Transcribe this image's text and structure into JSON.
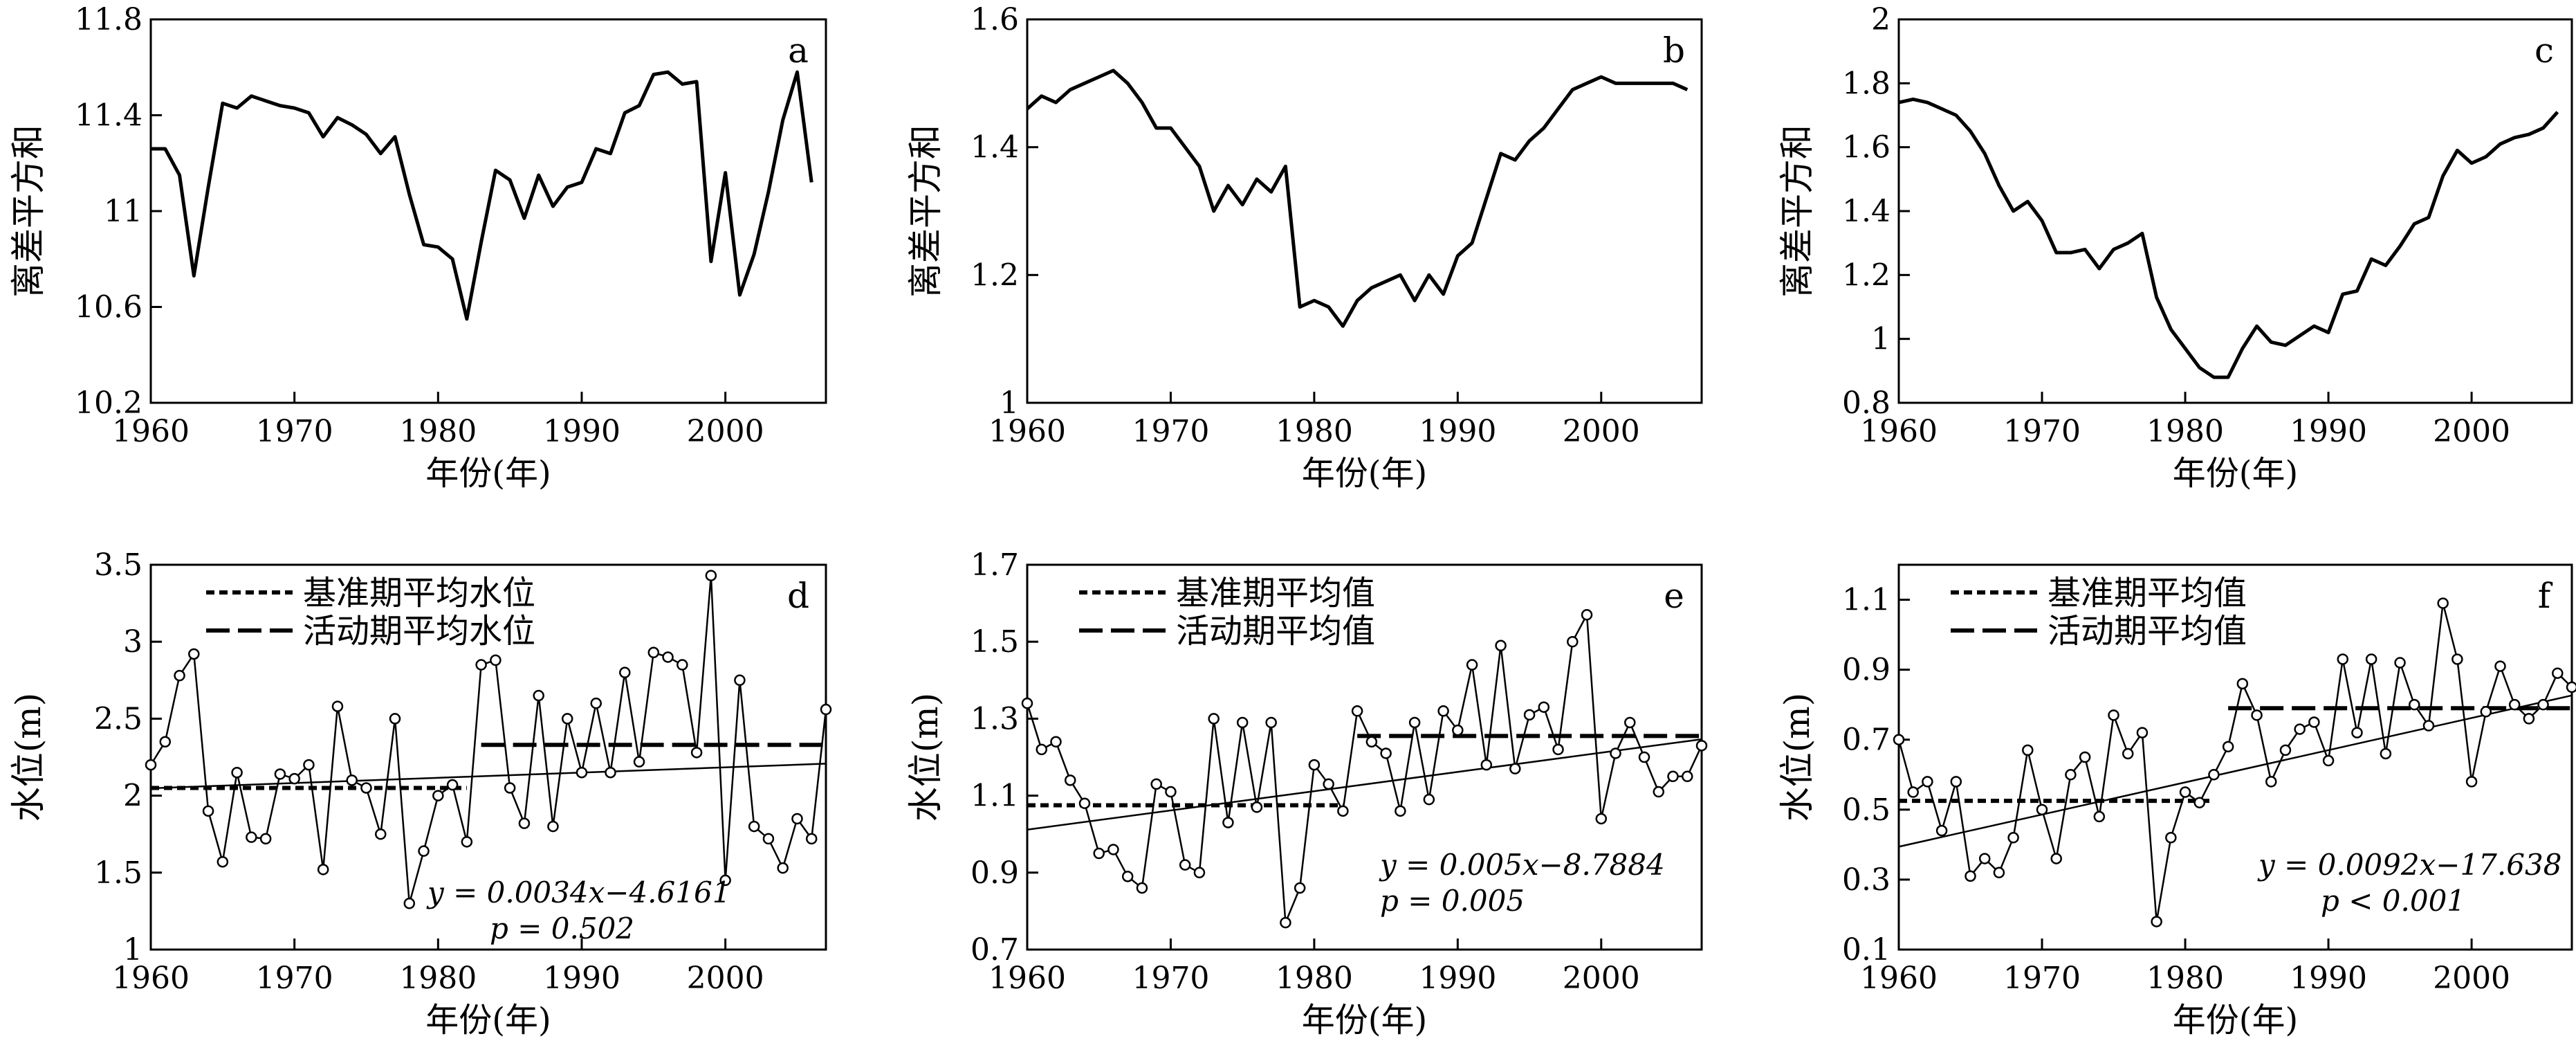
{
  "chart_data": [
    {
      "id": "a",
      "type": "line",
      "panel_label": "a",
      "xlabel": "年份(年)",
      "ylabel": "离差平方和",
      "xlim": [
        1960,
        2007
      ],
      "ylim": [
        10.2,
        11.8
      ],
      "xticks": [
        1960,
        1970,
        1980,
        1990,
        2000
      ],
      "yticks": [
        10.2,
        10.6,
        11,
        11.4,
        11.8
      ],
      "ytick_labels": [
        "10.2",
        "10.6",
        "11",
        "11.4",
        "11.8"
      ],
      "series": [
        {
          "x": [
            1960,
            1961,
            1962,
            1963,
            1964,
            1965,
            1966,
            1967,
            1968,
            1969,
            1970,
            1971,
            1972,
            1973,
            1974,
            1975,
            1976,
            1977,
            1978,
            1979,
            1980,
            1981,
            1982,
            1983,
            1984,
            1985,
            1986,
            1987,
            1988,
            1989,
            1990,
            1991,
            1992,
            1993,
            1994,
            1995,
            1996,
            1997,
            1998,
            1999,
            2000,
            2001,
            2002,
            2003,
            2004,
            2005,
            2006
          ],
          "y": [
            11.26,
            11.26,
            11.15,
            10.73,
            11.1,
            11.45,
            11.43,
            11.48,
            11.46,
            11.44,
            11.43,
            11.41,
            11.31,
            11.39,
            11.36,
            11.32,
            11.24,
            11.31,
            11.07,
            10.86,
            10.85,
            10.8,
            10.55,
            10.87,
            11.17,
            11.13,
            10.97,
            11.15,
            11.02,
            11.1,
            11.12,
            11.26,
            11.24,
            11.41,
            11.44,
            11.57,
            11.58,
            11.53,
            11.54,
            10.79,
            11.16,
            10.65,
            10.82,
            11.08,
            11.38,
            11.58,
            11.12
          ]
        }
      ]
    },
    {
      "id": "b",
      "type": "line",
      "panel_label": "b",
      "xlabel": "年份(年)",
      "ylabel": "离差平方和",
      "xlim": [
        1960,
        2007
      ],
      "ylim": [
        1.0,
        1.6
      ],
      "xticks": [
        1960,
        1970,
        1980,
        1990,
        2000
      ],
      "yticks": [
        1.0,
        1.2,
        1.4,
        1.6
      ],
      "ytick_labels": [
        "1",
        "1.2",
        "1.4",
        "1.6"
      ],
      "series": [
        {
          "x": [
            1960,
            1961,
            1962,
            1963,
            1964,
            1965,
            1966,
            1967,
            1968,
            1969,
            1970,
            1971,
            1972,
            1973,
            1974,
            1975,
            1976,
            1977,
            1978,
            1979,
            1980,
            1981,
            1982,
            1983,
            1984,
            1985,
            1986,
            1987,
            1988,
            1989,
            1990,
            1991,
            1992,
            1993,
            1994,
            1995,
            1996,
            1997,
            1998,
            1999,
            2000,
            2001,
            2002,
            2003,
            2004,
            2005,
            2006
          ],
          "y": [
            1.46,
            1.48,
            1.47,
            1.49,
            1.5,
            1.51,
            1.52,
            1.5,
            1.47,
            1.43,
            1.43,
            1.4,
            1.37,
            1.3,
            1.34,
            1.31,
            1.35,
            1.33,
            1.37,
            1.15,
            1.16,
            1.15,
            1.12,
            1.16,
            1.18,
            1.19,
            1.2,
            1.16,
            1.2,
            1.17,
            1.23,
            1.25,
            1.32,
            1.39,
            1.38,
            1.41,
            1.43,
            1.46,
            1.49,
            1.5,
            1.51,
            1.5,
            1.5,
            1.5,
            1.5,
            1.5,
            1.49
          ]
        }
      ]
    },
    {
      "id": "c",
      "type": "line",
      "panel_label": "c",
      "xlabel": "年份(年)",
      "ylabel": "离差平方和",
      "xlim": [
        1960,
        2007
      ],
      "ylim": [
        0.8,
        2.0
      ],
      "xticks": [
        1960,
        1970,
        1980,
        1990,
        2000
      ],
      "yticks": [
        0.8,
        1.0,
        1.2,
        1.4,
        1.6,
        1.8,
        2.0
      ],
      "ytick_labels": [
        "0.8",
        "1",
        "1.2",
        "1.4",
        "1.6",
        "1.8",
        "2"
      ],
      "series": [
        {
          "x": [
            1960,
            1961,
            1962,
            1963,
            1964,
            1965,
            1966,
            1967,
            1968,
            1969,
            1970,
            1971,
            1972,
            1973,
            1974,
            1975,
            1976,
            1977,
            1978,
            1979,
            1980,
            1981,
            1982,
            1983,
            1984,
            1985,
            1986,
            1987,
            1988,
            1989,
            1990,
            1991,
            1992,
            1993,
            1994,
            1995,
            1996,
            1997,
            1998,
            1999,
            2000,
            2001,
            2002,
            2003,
            2004,
            2005,
            2006
          ],
          "y": [
            1.74,
            1.75,
            1.74,
            1.72,
            1.7,
            1.65,
            1.58,
            1.48,
            1.4,
            1.43,
            1.37,
            1.27,
            1.27,
            1.28,
            1.22,
            1.28,
            1.3,
            1.33,
            1.13,
            1.03,
            0.97,
            0.91,
            0.88,
            0.88,
            0.97,
            1.04,
            0.99,
            0.98,
            1.01,
            1.04,
            1.02,
            1.14,
            1.15,
            1.25,
            1.23,
            1.29,
            1.36,
            1.38,
            1.51,
            1.59,
            1.55,
            1.57,
            1.61,
            1.63,
            1.64,
            1.66,
            1.71
          ]
        }
      ]
    },
    {
      "id": "d",
      "type": "line",
      "panel_label": "d",
      "xlabel": "年份(年)",
      "ylabel": "水位(m)",
      "xlim": [
        1960,
        2007
      ],
      "ylim": [
        1.0,
        3.5
      ],
      "xticks": [
        1960,
        1970,
        1980,
        1990,
        2000
      ],
      "yticks": [
        1.0,
        1.5,
        2.0,
        2.5,
        3.0,
        3.5
      ],
      "ytick_labels": [
        "1",
        "1.5",
        "2",
        "2.5",
        "3",
        "3.5"
      ],
      "legend": [
        "基准期平均水位",
        "活动期平均水位"
      ],
      "equation": "y = 0.0034x−4.6161",
      "pvalue": "p = 0.502",
      "trend": {
        "slope": 0.0034,
        "intercept": -4.6161
      },
      "baseline_mean": {
        "x": [
          1960,
          1982
        ],
        "y": 2.05
      },
      "active_mean": {
        "x": [
          1983,
          2007
        ],
        "y": 2.33
      },
      "series": [
        {
          "x": [
            1960,
            1961,
            1962,
            1963,
            1964,
            1965,
            1966,
            1967,
            1968,
            1969,
            1970,
            1971,
            1972,
            1973,
            1974,
            1975,
            1976,
            1977,
            1978,
            1979,
            1980,
            1981,
            1982,
            1983,
            1984,
            1985,
            1986,
            1987,
            1988,
            1989,
            1990,
            1991,
            1992,
            1993,
            1994,
            1995,
            1996,
            1997,
            1998,
            1999,
            2000,
            2001,
            2002,
            2003,
            2004,
            2005,
            2006,
            2007
          ],
          "y": [
            2.2,
            2.35,
            2.78,
            2.92,
            1.9,
            1.57,
            2.15,
            1.73,
            1.72,
            2.14,
            2.11,
            2.2,
            1.52,
            2.58,
            2.1,
            2.05,
            1.75,
            2.5,
            1.3,
            1.64,
            2.0,
            2.07,
            1.7,
            2.85,
            2.88,
            2.05,
            1.82,
            2.65,
            1.8,
            2.5,
            2.15,
            2.6,
            2.15,
            2.8,
            2.22,
            2.93,
            2.9,
            2.85,
            2.28,
            3.43,
            1.45,
            2.75,
            1.8,
            1.72,
            1.53,
            1.85,
            1.72,
            2.56
          ]
        }
      ]
    },
    {
      "id": "e",
      "type": "line",
      "panel_label": "e",
      "xlabel": "年份(年)",
      "ylabel": "水位(m)",
      "xlim": [
        1960,
        2007
      ],
      "ylim": [
        0.7,
        1.7
      ],
      "xticks": [
        1960,
        1970,
        1980,
        1990,
        2000
      ],
      "yticks": [
        0.7,
        0.9,
        1.1,
        1.3,
        1.5,
        1.7
      ],
      "ytick_labels": [
        "0.7",
        "0.9",
        "1.1",
        "1.3",
        "1.5",
        "1.7"
      ],
      "legend": [
        "基准期平均值",
        "活动期平均值"
      ],
      "equation": "y = 0.005x−8.7884",
      "pvalue": "p = 0.005",
      "trend": {
        "slope": 0.005,
        "intercept": -8.7884
      },
      "baseline_mean": {
        "x": [
          1960,
          1982
        ],
        "y": 1.075
      },
      "active_mean": {
        "x": [
          1983,
          2007
        ],
        "y": 1.255
      },
      "series": [
        {
          "x": [
            1960,
            1961,
            1962,
            1963,
            1964,
            1965,
            1966,
            1967,
            1968,
            1969,
            1970,
            1971,
            1972,
            1973,
            1974,
            1975,
            1976,
            1977,
            1978,
            1979,
            1980,
            1981,
            1982,
            1983,
            1984,
            1985,
            1986,
            1987,
            1988,
            1989,
            1990,
            1991,
            1992,
            1993,
            1994,
            1995,
            1996,
            1997,
            1998,
            1999,
            2000,
            2001,
            2002,
            2003,
            2004,
            2005,
            2006,
            2007
          ],
          "y": [
            1.34,
            1.22,
            1.24,
            1.14,
            1.08,
            0.95,
            0.96,
            0.89,
            0.86,
            1.13,
            1.11,
            0.92,
            0.9,
            1.3,
            1.03,
            1.29,
            1.07,
            1.29,
            0.77,
            0.86,
            1.18,
            1.13,
            1.06,
            1.32,
            1.24,
            1.21,
            1.06,
            1.29,
            1.09,
            1.32,
            1.27,
            1.44,
            1.18,
            1.49,
            1.17,
            1.31,
            1.33,
            1.22,
            1.5,
            1.57,
            1.04,
            1.21,
            1.29,
            1.2,
            1.11,
            1.15,
            1.15,
            1.23
          ]
        }
      ]
    },
    {
      "id": "f",
      "type": "line",
      "panel_label": "f",
      "xlabel": "年份(年)",
      "ylabel": "水位(m)",
      "xlim": [
        1960,
        2007
      ],
      "ylim": [
        0.1,
        1.2
      ],
      "xticks": [
        1960,
        1970,
        1980,
        1990,
        2000
      ],
      "yticks": [
        0.1,
        0.3,
        0.5,
        0.7,
        0.9,
        1.1
      ],
      "ytick_labels": [
        "0.1",
        "0.3",
        "0.5",
        "0.7",
        "0.9",
        "1.1"
      ],
      "legend": [
        "基准期平均值",
        "活动期平均值"
      ],
      "equation": "y = 0.0092x−17.638",
      "pvalue": "p < 0.001",
      "trend": {
        "slope": 0.0092,
        "intercept": -17.638
      },
      "baseline_mean": {
        "x": [
          1960,
          1982
        ],
        "y": 0.525
      },
      "active_mean": {
        "x": [
          1983,
          2007
        ],
        "y": 0.79
      },
      "series": [
        {
          "x": [
            1960,
            1961,
            1962,
            1963,
            1964,
            1965,
            1966,
            1967,
            1968,
            1969,
            1970,
            1971,
            1972,
            1973,
            1974,
            1975,
            1976,
            1977,
            1978,
            1979,
            1980,
            1981,
            1982,
            1983,
            1984,
            1985,
            1986,
            1987,
            1988,
            1989,
            1990,
            1991,
            1992,
            1993,
            1994,
            1995,
            1996,
            1997,
            1998,
            1999,
            2000,
            2001,
            2002,
            2003,
            2004,
            2005,
            2006,
            2007
          ],
          "y": [
            0.7,
            0.55,
            0.58,
            0.44,
            0.58,
            0.31,
            0.36,
            0.32,
            0.42,
            0.67,
            0.5,
            0.36,
            0.6,
            0.65,
            0.48,
            0.77,
            0.66,
            0.72,
            0.18,
            0.42,
            0.55,
            0.52,
            0.6,
            0.68,
            0.86,
            0.77,
            0.58,
            0.67,
            0.73,
            0.75,
            0.64,
            0.93,
            0.72,
            0.93,
            0.66,
            0.92,
            0.8,
            0.74,
            1.09,
            0.93,
            0.58,
            0.78,
            0.91,
            0.8,
            0.76,
            0.8,
            0.89,
            0.85
          ]
        }
      ]
    }
  ]
}
